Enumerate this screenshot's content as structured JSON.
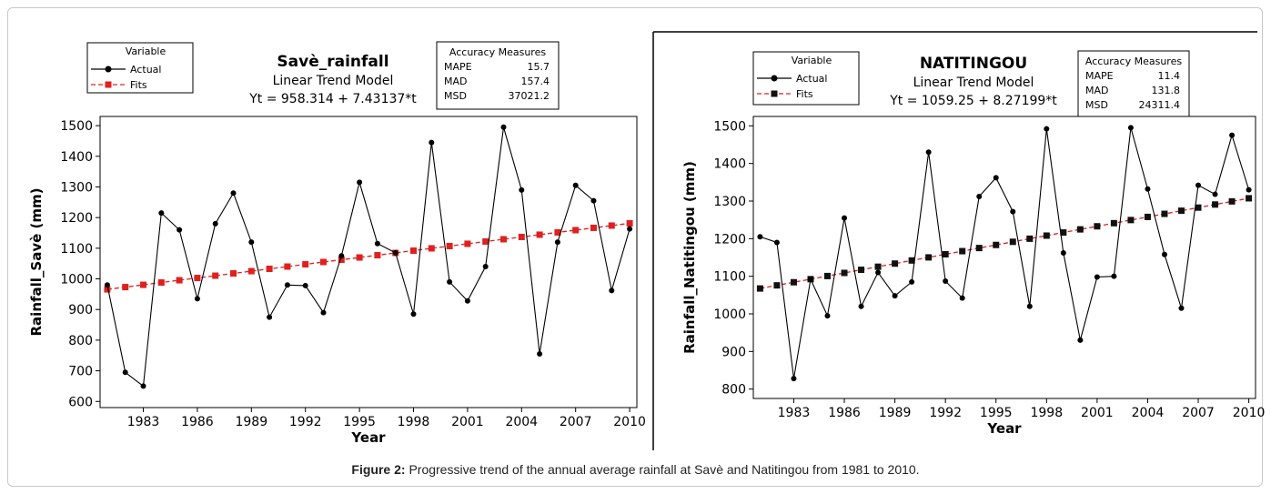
{
  "caption": {
    "label": "Figure 2:",
    "text": "Progressive trend of the annual average rainfall at Savè and Natitingou from 1981 to 2010."
  },
  "colors": {
    "actual": "#000000",
    "fits": "#e02020",
    "fits_marker_right": "#111111"
  },
  "chart_data": [
    {
      "type": "line",
      "title": "Savè_rainfall",
      "subtitle": "Linear Trend Model",
      "equation": "Yt = 958.314 + 7.43137*t",
      "xlabel": "Year",
      "ylabel": "Rainfall_Savè (mm)",
      "ylim": [
        580,
        1530
      ],
      "xlim": [
        1980.6,
        2010.4
      ],
      "yticks": [
        600,
        700,
        800,
        900,
        1000,
        1100,
        1200,
        1300,
        1400,
        1500
      ],
      "xticks": [
        1983,
        1986,
        1989,
        1992,
        1995,
        1998,
        2001,
        2004,
        2007,
        2010
      ],
      "legend": {
        "title": "Variable",
        "items": [
          "Actual",
          "Fits"
        ],
        "placement": "top-left"
      },
      "accuracy": {
        "title": "Accuracy Measures",
        "rows": [
          {
            "name": "MAPE",
            "value": "15.7"
          },
          {
            "name": "MAD",
            "value": "157.4"
          },
          {
            "name": "MSD",
            "value": "37021.2"
          }
        ]
      },
      "x": [
        1981,
        1982,
        1983,
        1984,
        1985,
        1986,
        1987,
        1988,
        1989,
        1990,
        1991,
        1992,
        1993,
        1994,
        1995,
        1996,
        1997,
        1998,
        1999,
        2000,
        2001,
        2002,
        2003,
        2004,
        2005,
        2006,
        2007,
        2008,
        2009,
        2010
      ],
      "series": [
        {
          "name": "Actual",
          "values": [
            980,
            695,
            650,
            1215,
            1160,
            935,
            1180,
            1280,
            1120,
            875,
            980,
            978,
            890,
            1075,
            1315,
            1115,
            1085,
            885,
            1445,
            990,
            928,
            1040,
            1495,
            1290,
            755,
            1120,
            1305,
            1255,
            962,
            1163
          ]
        },
        {
          "name": "Fits",
          "values": [
            965.7,
            973.2,
            980.6,
            988.1,
            995.5,
            1002.9,
            1010.4,
            1017.8,
            1025.2,
            1032.7,
            1040.1,
            1047.5,
            1055.0,
            1062.4,
            1069.8,
            1077.2,
            1084.7,
            1092.1,
            1099.6,
            1107.0,
            1114.5,
            1121.9,
            1129.3,
            1136.7,
            1144.2,
            1151.6,
            1159.0,
            1166.5,
            1173.9,
            1181.3
          ]
        }
      ]
    },
    {
      "type": "line",
      "title": "NATITINGOU",
      "subtitle": "Linear Trend Model",
      "equation": "Yt = 1059.25 + 8.27199*t",
      "xlabel": "Year",
      "ylabel": "Rainfall_Natitingou (mm)",
      "ylim": [
        775,
        1525
      ],
      "xlim": [
        1980.6,
        2010.4
      ],
      "yticks": [
        800,
        900,
        1000,
        1100,
        1200,
        1300,
        1400,
        1500
      ],
      "xticks": [
        1983,
        1986,
        1989,
        1992,
        1995,
        1998,
        2001,
        2004,
        2007,
        2010
      ],
      "legend": {
        "title": "Variable",
        "items": [
          "Actual",
          "Fits"
        ],
        "placement": "top-left"
      },
      "accuracy": {
        "title": "Accuracy Measures",
        "rows": [
          {
            "name": "MAPE",
            "value": "11.4"
          },
          {
            "name": "MAD",
            "value": "131.8"
          },
          {
            "name": "MSD",
            "value": "24311.4"
          }
        ]
      },
      "x": [
        1981,
        1982,
        1983,
        1984,
        1985,
        1986,
        1987,
        1988,
        1989,
        1990,
        1991,
        1992,
        1993,
        1994,
        1995,
        1996,
        1997,
        1998,
        1999,
        2000,
        2001,
        2002,
        2003,
        2004,
        2005,
        2006,
        2007,
        2008,
        2009,
        2010
      ],
      "series": [
        {
          "name": "Actual",
          "values": [
            1205,
            1190,
            828,
            1092,
            995,
            1255,
            1020,
            1110,
            1048,
            1085,
            1430,
            1087,
            1042,
            1312,
            1362,
            1272,
            1020,
            1492,
            1162,
            930,
            1098,
            1100,
            1495,
            1332,
            1158,
            1015,
            1342,
            1318,
            1475,
            1330
          ]
        },
        {
          "name": "Fits",
          "values": [
            1067.5,
            1075.8,
            1084.1,
            1092.3,
            1100.6,
            1108.9,
            1117.2,
            1125.4,
            1133.7,
            1142.0,
            1150.2,
            1158.5,
            1166.8,
            1175.1,
            1183.3,
            1191.6,
            1199.9,
            1208.1,
            1216.4,
            1224.7,
            1232.9,
            1241.2,
            1249.5,
            1257.8,
            1266.0,
            1274.3,
            1282.6,
            1290.8,
            1299.1,
            1307.4
          ]
        }
      ]
    }
  ]
}
